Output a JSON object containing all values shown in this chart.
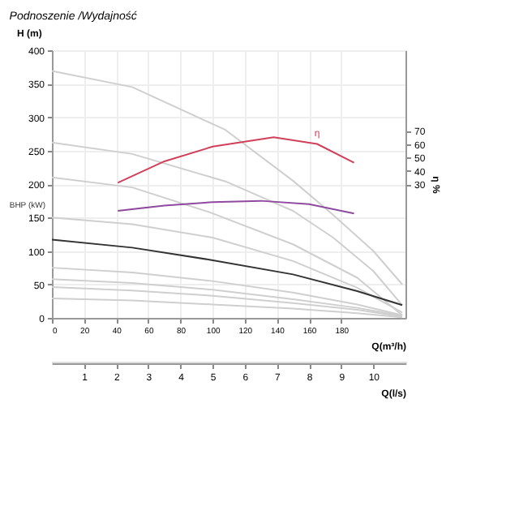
{
  "chart_data": {
    "type": "line",
    "title": "Podnoszenie /Wydajność",
    "xlabel": "Q(m³/h)",
    "x2label": "Q(l/s)",
    "ylabel": "H (m)",
    "y2label": "η %",
    "xlim": [
      0,
      220
    ],
    "xticks": [
      0,
      20,
      40,
      60,
      80,
      100,
      120,
      140,
      160,
      180
    ],
    "x2lim": [
      0,
      11
    ],
    "x2ticks": [
      1,
      2,
      3,
      4,
      5,
      6,
      7,
      8,
      9,
      10
    ],
    "ylim": [
      0,
      400
    ],
    "yticks": [
      0,
      50,
      100,
      150,
      200,
      250,
      300,
      350,
      400
    ],
    "y2lim": [
      -70,
      130
    ],
    "y2ticks": [
      30,
      40,
      50,
      60,
      70
    ],
    "grid": true,
    "marker": "none",
    "line_style": "solid",
    "annotations": [
      "BHP (kW)"
    ],
    "series": [
      {
        "color": "#cfcfcf",
        "x": [
          0,
          50,
          108,
          150,
          175,
          200,
          218
        ],
        "values": [
          369,
          345,
          281,
          205,
          154,
          100,
          50
        ]
      },
      {
        "color": "#cfcfcf",
        "x": [
          0,
          50,
          108,
          150,
          175,
          200,
          218
        ],
        "values": [
          262,
          245,
          204,
          160,
          120,
          70,
          19
        ]
      },
      {
        "color": "#cfcfcf",
        "x": [
          0,
          50,
          98,
          150,
          190,
          218
        ],
        "values": [
          210,
          195,
          158,
          110,
          60,
          4
        ]
      },
      {
        "color": "#cfcfcf",
        "x": [
          0,
          50,
          100,
          150,
          190,
          218
        ],
        "values": [
          150,
          140,
          120,
          85,
          45,
          8
        ]
      },
      {
        "color": "#333333",
        "x": [
          0,
          50,
          98,
          150,
          190,
          218
        ],
        "values": [
          117,
          105,
          87,
          65,
          40,
          19
        ]
      },
      {
        "color": "#cfcfcf",
        "x": [
          0,
          50,
          100,
          150,
          190,
          218
        ],
        "values": [
          75,
          68,
          55,
          38,
          20,
          4
        ]
      },
      {
        "color": "#cfcfcf",
        "x": [
          0,
          50,
          100,
          150,
          190,
          218
        ],
        "values": [
          58,
          52,
          42,
          28,
          15,
          3
        ]
      },
      {
        "color": "#cfcfcf",
        "x": [
          0,
          50,
          100,
          150,
          190,
          218
        ],
        "values": [
          46,
          41,
          33,
          22,
          12,
          2
        ]
      },
      {
        "color": "#cfcfcf",
        "x": [
          0,
          50,
          100,
          150,
          190,
          218
        ],
        "values": [
          29,
          26,
          20,
          14,
          7,
          1
        ]
      },
      {
        "color": "#8e4a9e",
        "x": [
          41,
          70,
          100,
          130,
          160,
          188
        ],
        "values": [
          160,
          168,
          173,
          175,
          170,
          156
        ]
      },
      {
        "name": "η",
        "color": "#d0405a",
        "axis": "y2",
        "x": [
          41,
          70,
          100,
          138,
          165,
          188
        ],
        "values": [
          31,
          47,
          58,
          65,
          60,
          46
        ]
      }
    ]
  }
}
